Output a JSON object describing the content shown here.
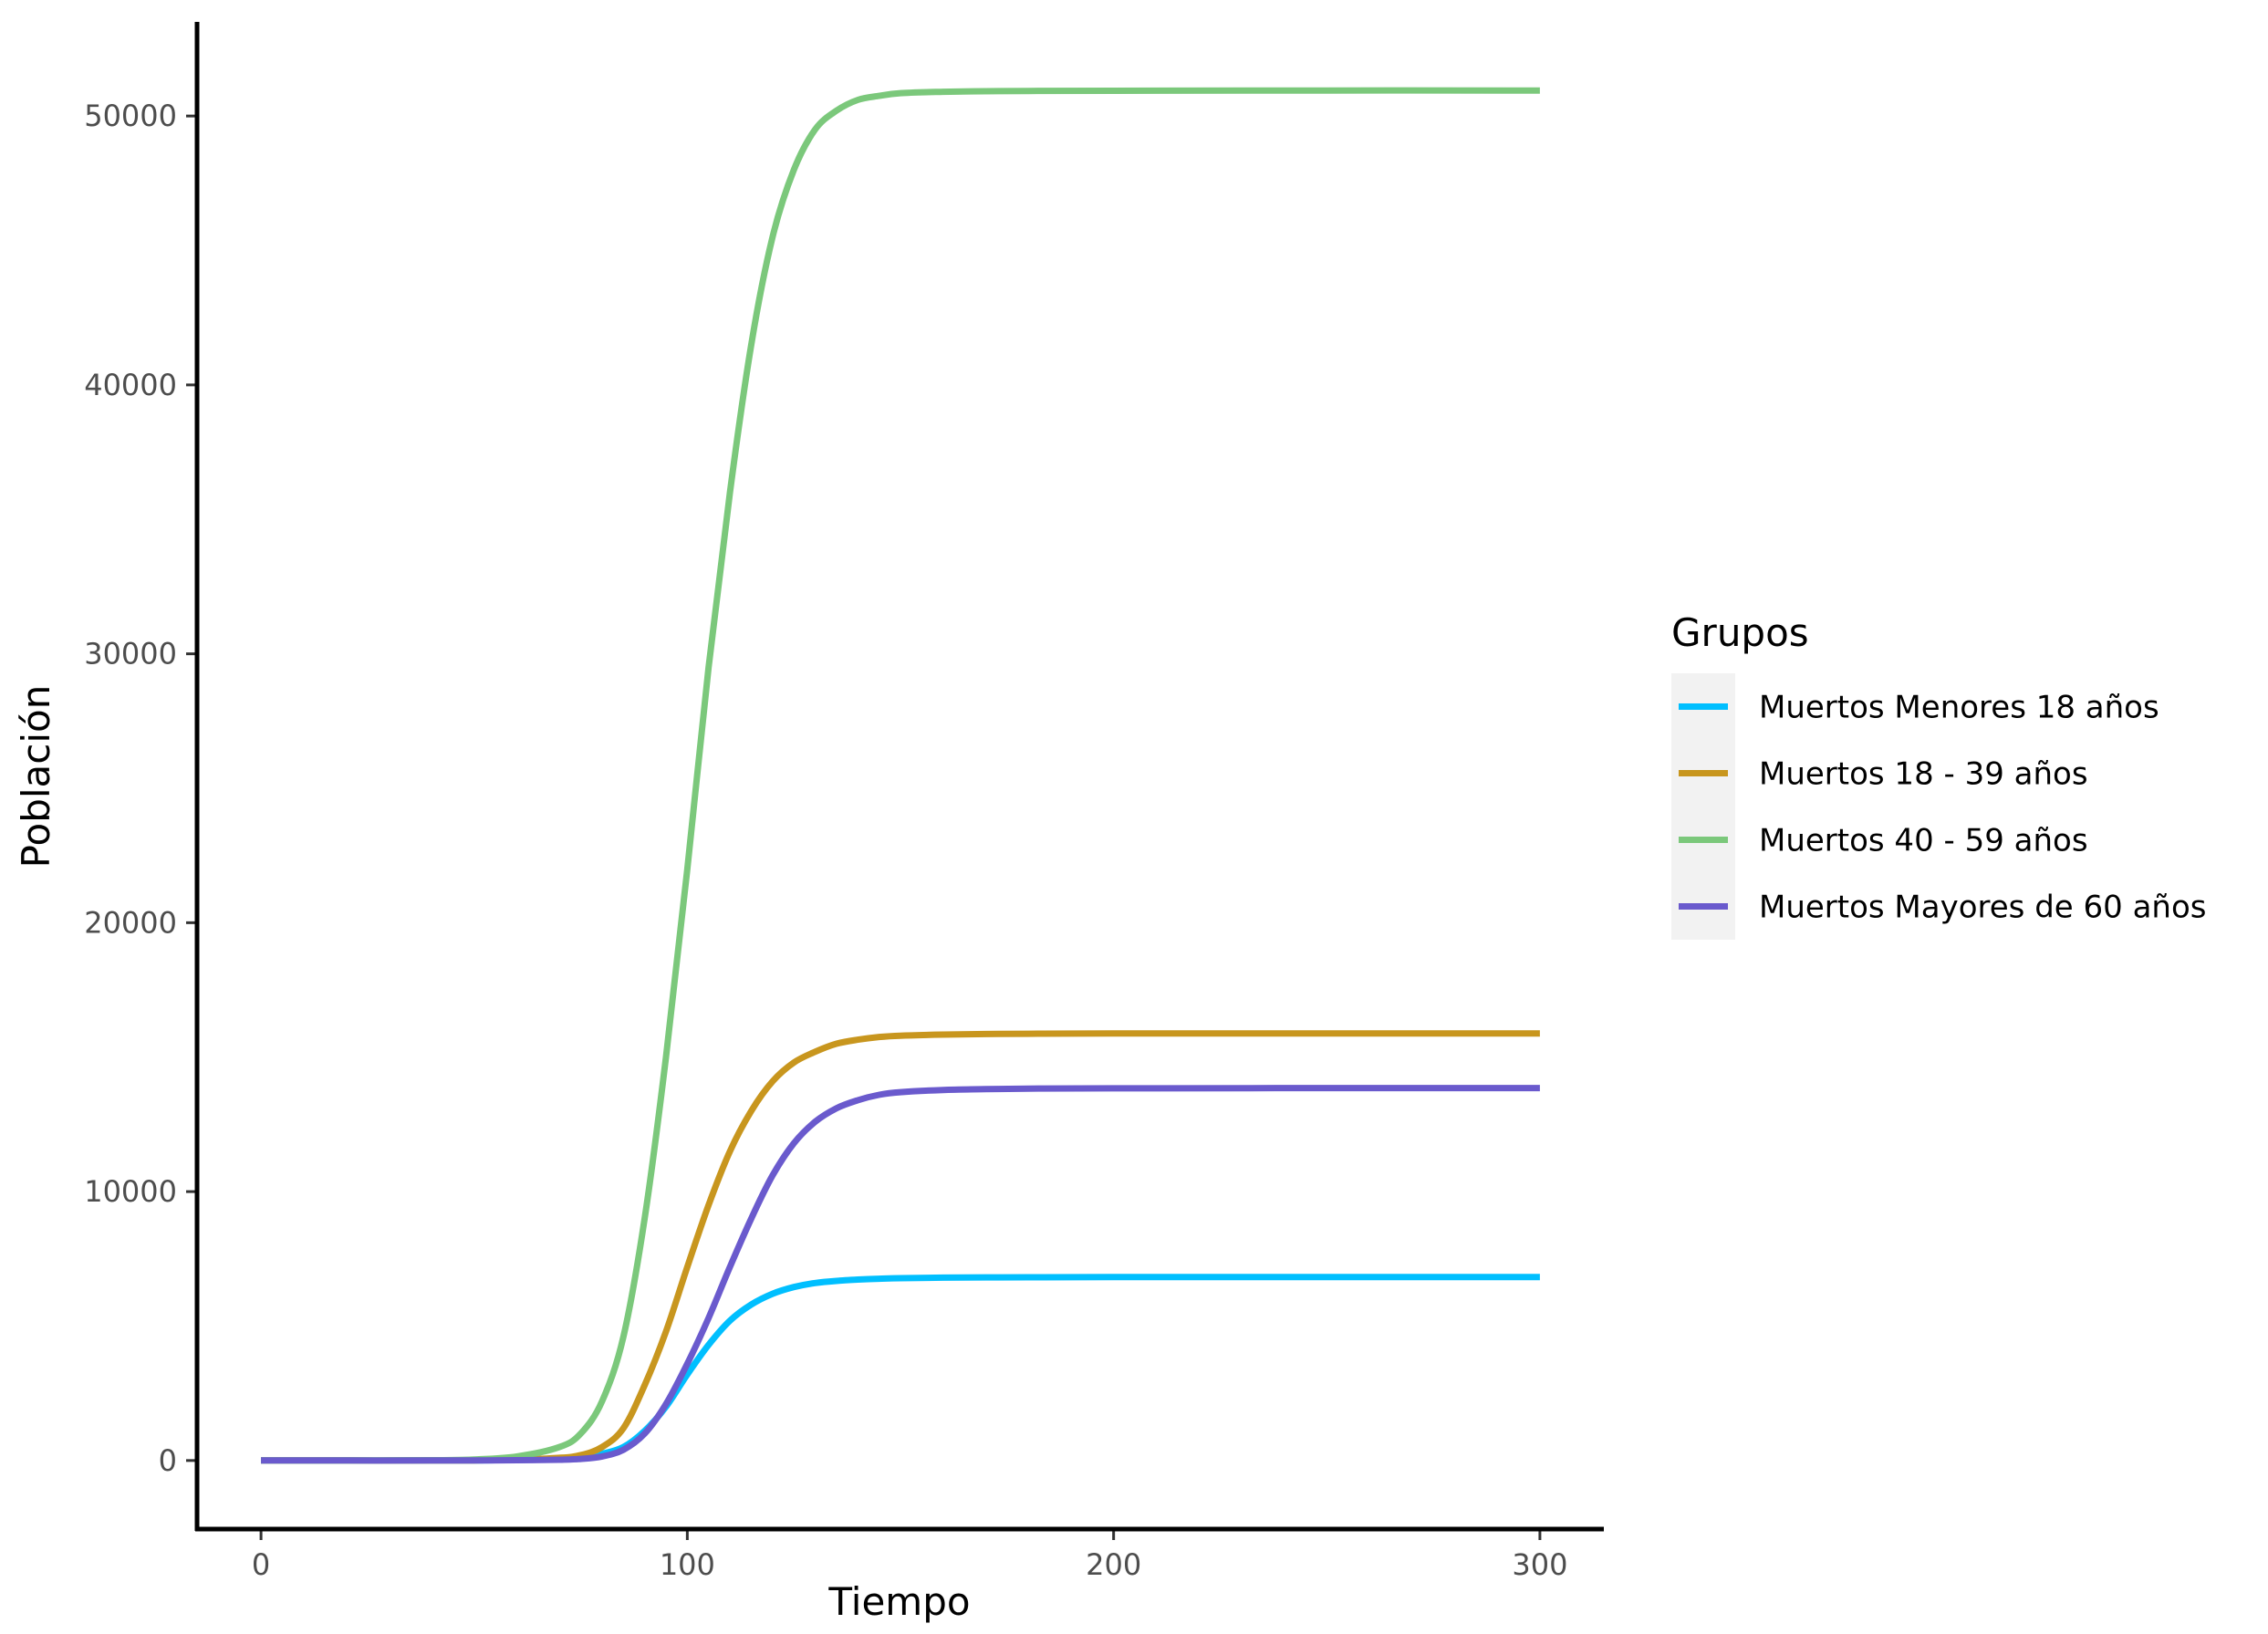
{
  "chart_data": {
    "type": "line",
    "xlabel": "Tiempo",
    "ylabel": "Población",
    "xlim": [
      -15,
      315
    ],
    "ylim": [
      -2550,
      53500
    ],
    "xticks": [
      0,
      100,
      200,
      300
    ],
    "xtick_labels": [
      "0",
      "100",
      "200",
      "300"
    ],
    "yticks": [
      0,
      10000,
      20000,
      30000,
      40000,
      50000
    ],
    "ytick_labels": [
      "0",
      "10000",
      "20000",
      "30000",
      "40000",
      "50000"
    ],
    "grid": false,
    "legend": {
      "title": "Grupos",
      "position": "right"
    },
    "x": [
      0,
      20,
      40,
      50,
      60,
      70,
      75,
      80,
      85,
      90,
      95,
      100,
      105,
      110,
      115,
      120,
      125,
      130,
      135,
      140,
      145,
      150,
      160,
      170,
      180,
      200,
      250,
      300
    ],
    "series": [
      {
        "name": "Muertos Menores 18 años",
        "color": "#00BFFF",
        "values": [
          0,
          0,
          0,
          5,
          20,
          60,
          120,
          250,
          500,
          1100,
          2000,
          3200,
          4300,
          5200,
          5800,
          6200,
          6450,
          6600,
          6680,
          6730,
          6760,
          6780,
          6800,
          6810,
          6815,
          6820,
          6820,
          6820
        ]
      },
      {
        "name": "Muertos 18 - 39 años",
        "color": "#C8961E",
        "values": [
          0,
          0,
          0,
          5,
          30,
          100,
          200,
          500,
          1200,
          2800,
          4800,
          7200,
          9500,
          11500,
          13000,
          14100,
          14800,
          15200,
          15500,
          15650,
          15750,
          15800,
          15840,
          15860,
          15870,
          15880,
          15880,
          15880
        ]
      },
      {
        "name": "Muertos 40 - 59 años",
        "color": "#7BC87B",
        "values": [
          0,
          0,
          10,
          40,
          150,
          500,
          1000,
          2200,
          4600,
          9000,
          15000,
          22000,
          29500,
          36000,
          41500,
          45500,
          48000,
          49500,
          50200,
          50600,
          50750,
          50850,
          50900,
          50920,
          50930,
          50940,
          50950,
          50950
        ]
      },
      {
        "name": "Muertos Mayores de 60 años",
        "color": "#6A5ACD",
        "values": [
          0,
          0,
          0,
          3,
          10,
          30,
          60,
          150,
          400,
          1000,
          2100,
          3600,
          5300,
          7200,
          9000,
          10600,
          11800,
          12600,
          13100,
          13400,
          13600,
          13700,
          13780,
          13810,
          13830,
          13840,
          13850,
          13850
        ]
      }
    ]
  }
}
